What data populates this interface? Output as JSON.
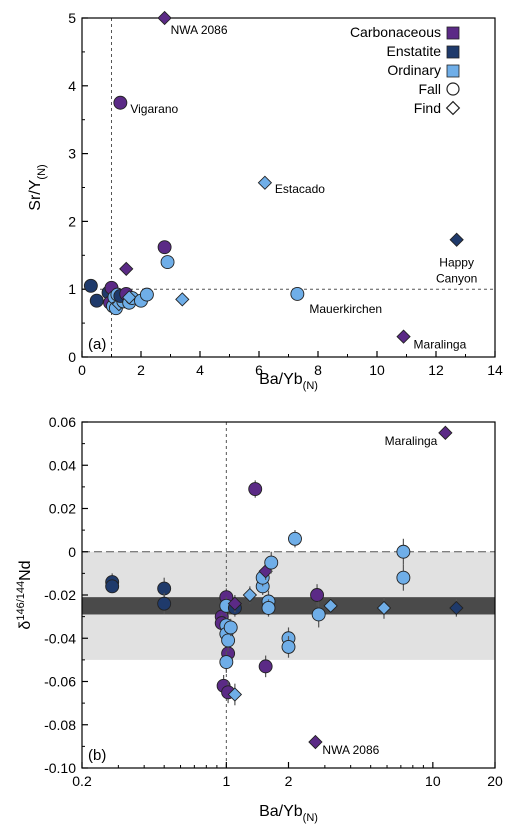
{
  "colors": {
    "carbonaceous": "#5b2a86",
    "enstatite": "#1f3a6b",
    "ordinary": "#6faee8",
    "outline": "#222222",
    "shade_light": "#e1e1e1",
    "shade_dark": "#4a4a4a",
    "errorbar": "#555555"
  },
  "legend": {
    "carbonaceous": "Carbonaceous",
    "enstatite": "Enstatite",
    "ordinary": "Ordinary",
    "fall": "Fall",
    "find": "Find",
    "placement": "top-right"
  },
  "chart_data": [
    {
      "type": "scatter",
      "panel_label": "(a)",
      "xlabel": "Ba/Yb",
      "xlabel_sub": "(N)",
      "ylabel": "Sr/Y",
      "ylabel_sub": "(N)",
      "xlim": [
        0,
        14
      ],
      "ylim": [
        0,
        5
      ],
      "x_scale": "linear",
      "xticks": [
        0,
        2,
        4,
        6,
        8,
        10,
        12,
        14
      ],
      "yticks": [
        0,
        1,
        2,
        3,
        4,
        5
      ],
      "xtick_labels": [
        "0",
        "2",
        "4",
        "6",
        "8",
        "10",
        "12",
        "14"
      ],
      "ytick_labels": [
        "0",
        "1",
        "2",
        "3",
        "4",
        "5"
      ],
      "reference_lines": [
        {
          "axis": "x",
          "value": 1
        },
        {
          "axis": "y",
          "value": 1
        }
      ],
      "points": [
        {
          "x": 2.8,
          "y": 5.0,
          "group": "carbonaceous",
          "shape": "find",
          "label": "NWA 2086"
        },
        {
          "x": 1.3,
          "y": 3.75,
          "group": "carbonaceous",
          "shape": "fall",
          "label": "Vigarano"
        },
        {
          "x": 6.2,
          "y": 2.57,
          "group": "ordinary",
          "shape": "find",
          "label": "Estacado"
        },
        {
          "x": 12.7,
          "y": 1.73,
          "group": "enstatite",
          "shape": "find",
          "label": "Happy Canyon"
        },
        {
          "x": 7.3,
          "y": 0.93,
          "group": "ordinary",
          "shape": "fall",
          "label": "Mauerkirchen"
        },
        {
          "x": 10.9,
          "y": 0.3,
          "group": "carbonaceous",
          "shape": "find",
          "label": "Maralinga"
        },
        {
          "x": 0.3,
          "y": 1.05,
          "group": "enstatite",
          "shape": "fall"
        },
        {
          "x": 0.5,
          "y": 0.83,
          "group": "enstatite",
          "shape": "fall"
        },
        {
          "x": 0.9,
          "y": 0.95,
          "group": "enstatite",
          "shape": "fall"
        },
        {
          "x": 1.0,
          "y": 1.02,
          "group": "carbonaceous",
          "shape": "fall"
        },
        {
          "x": 0.95,
          "y": 0.8,
          "group": "carbonaceous",
          "shape": "fall"
        },
        {
          "x": 1.05,
          "y": 0.75,
          "group": "ordinary",
          "shape": "fall"
        },
        {
          "x": 1.1,
          "y": 0.88,
          "group": "ordinary",
          "shape": "fall"
        },
        {
          "x": 1.15,
          "y": 0.72,
          "group": "ordinary",
          "shape": "fall"
        },
        {
          "x": 1.2,
          "y": 0.92,
          "group": "ordinary",
          "shape": "fall"
        },
        {
          "x": 1.25,
          "y": 0.78,
          "group": "ordinary",
          "shape": "find"
        },
        {
          "x": 1.4,
          "y": 0.82,
          "group": "ordinary",
          "shape": "fall"
        },
        {
          "x": 1.3,
          "y": 0.9,
          "group": "enstatite",
          "shape": "fall"
        },
        {
          "x": 1.5,
          "y": 0.93,
          "group": "carbonaceous",
          "shape": "fall"
        },
        {
          "x": 1.5,
          "y": 1.3,
          "group": "carbonaceous",
          "shape": "find"
        },
        {
          "x": 1.6,
          "y": 0.8,
          "group": "ordinary",
          "shape": "fall"
        },
        {
          "x": 1.7,
          "y": 0.87,
          "group": "ordinary",
          "shape": "fall"
        },
        {
          "x": 1.6,
          "y": 0.88,
          "group": "ordinary",
          "shape": "find"
        },
        {
          "x": 2.0,
          "y": 0.83,
          "group": "ordinary",
          "shape": "fall"
        },
        {
          "x": 2.2,
          "y": 0.92,
          "group": "ordinary",
          "shape": "fall"
        },
        {
          "x": 2.8,
          "y": 1.62,
          "group": "carbonaceous",
          "shape": "fall"
        },
        {
          "x": 2.9,
          "y": 1.4,
          "group": "ordinary",
          "shape": "fall"
        },
        {
          "x": 3.4,
          "y": 0.85,
          "group": "ordinary",
          "shape": "find"
        }
      ]
    },
    {
      "type": "scatter",
      "panel_label": "(b)",
      "xlabel": "Ba/Yb",
      "xlabel_sub": "(N)",
      "ylabel": "δ",
      "ylabel_sup": "146/144",
      "ylabel_tail": "Nd",
      "xlim": [
        0.2,
        20
      ],
      "ylim": [
        -0.1,
        0.06
      ],
      "x_scale": "log",
      "xticks": [
        0.2,
        1,
        2,
        10,
        20
      ],
      "xtick_labels": [
        "0.2",
        "1",
        "2",
        "10",
        "20"
      ],
      "yticks": [
        -0.1,
        -0.08,
        -0.06,
        -0.04,
        -0.02,
        0,
        0.02,
        0.04,
        0.06
      ],
      "ytick_labels": [
        "-0.10",
        "-0.08",
        "-0.06",
        "-0.04",
        "-0.02",
        "0",
        "0.02",
        "0.04",
        "0.06"
      ],
      "reference_lines": [
        {
          "axis": "x",
          "value": 1
        },
        {
          "axis": "y",
          "value": 0
        }
      ],
      "shaded_bands": [
        {
          "ymin": -0.05,
          "ymax": 0.0,
          "tone": "light"
        },
        {
          "ymin": -0.029,
          "ymax": -0.021,
          "tone": "dark"
        }
      ],
      "points": [
        {
          "x": 11.5,
          "y": 0.055,
          "group": "carbonaceous",
          "shape": "find",
          "label": "Maralinga"
        },
        {
          "x": 2.7,
          "y": -0.088,
          "group": "carbonaceous",
          "shape": "find",
          "label": "NWA 2086"
        },
        {
          "x": 0.28,
          "y": -0.014,
          "group": "enstatite",
          "shape": "fall",
          "err": 0.004
        },
        {
          "x": 0.28,
          "y": -0.016,
          "group": "enstatite",
          "shape": "fall",
          "err": 0.003
        },
        {
          "x": 0.5,
          "y": -0.017,
          "group": "enstatite",
          "shape": "fall",
          "err": 0.005
        },
        {
          "x": 0.5,
          "y": -0.024,
          "group": "enstatite",
          "shape": "fall",
          "err": 0.005
        },
        {
          "x": 0.95,
          "y": -0.03,
          "group": "carbonaceous",
          "shape": "fall",
          "err": 0.004
        },
        {
          "x": 0.95,
          "y": -0.033,
          "group": "carbonaceous",
          "shape": "fall",
          "err": 0.004
        },
        {
          "x": 0.97,
          "y": -0.062,
          "group": "carbonaceous",
          "shape": "fall",
          "err": 0.005
        },
        {
          "x": 1.0,
          "y": -0.021,
          "group": "carbonaceous",
          "shape": "fall",
          "err": 0.004
        },
        {
          "x": 1.02,
          "y": -0.047,
          "group": "carbonaceous",
          "shape": "fall",
          "err": 0.005
        },
        {
          "x": 1.02,
          "y": -0.065,
          "group": "carbonaceous",
          "shape": "fall",
          "err": 0.005
        },
        {
          "x": 1.0,
          "y": -0.025,
          "group": "ordinary",
          "shape": "fall",
          "err": 0.004
        },
        {
          "x": 1.0,
          "y": -0.034,
          "group": "ordinary",
          "shape": "fall",
          "err": 0.004
        },
        {
          "x": 1.0,
          "y": -0.038,
          "group": "ordinary",
          "shape": "fall",
          "err": 0.005
        },
        {
          "x": 1.02,
          "y": -0.041,
          "group": "ordinary",
          "shape": "fall",
          "err": 0.005
        },
        {
          "x": 1.0,
          "y": -0.051,
          "group": "ordinary",
          "shape": "fall",
          "err": 0.005
        },
        {
          "x": 1.05,
          "y": -0.035,
          "group": "ordinary",
          "shape": "fall",
          "err": 0.004
        },
        {
          "x": 1.1,
          "y": -0.026,
          "group": "enstatite",
          "shape": "fall",
          "err": 0.004
        },
        {
          "x": 1.1,
          "y": -0.024,
          "group": "carbonaceous",
          "shape": "find",
          "err": 0.004
        },
        {
          "x": 1.1,
          "y": -0.066,
          "group": "ordinary",
          "shape": "find",
          "err": 0.005
        },
        {
          "x": 1.3,
          "y": -0.02,
          "group": "ordinary",
          "shape": "find",
          "err": 0.004
        },
        {
          "x": 1.38,
          "y": 0.029,
          "group": "carbonaceous",
          "shape": "fall",
          "err": 0.004
        },
        {
          "x": 1.5,
          "y": -0.016,
          "group": "ordinary",
          "shape": "fall",
          "err": 0.004
        },
        {
          "x": 1.5,
          "y": -0.012,
          "group": "ordinary",
          "shape": "fall",
          "err": 0.004
        },
        {
          "x": 1.55,
          "y": -0.009,
          "group": "carbonaceous",
          "shape": "find",
          "err": 0.004
        },
        {
          "x": 1.55,
          "y": -0.053,
          "group": "carbonaceous",
          "shape": "fall",
          "err": 0.005
        },
        {
          "x": 1.6,
          "y": -0.023,
          "group": "ordinary",
          "shape": "fall",
          "err": 0.005
        },
        {
          "x": 1.6,
          "y": -0.026,
          "group": "ordinary",
          "shape": "fall",
          "err": 0.004
        },
        {
          "x": 1.65,
          "y": -0.005,
          "group": "ordinary",
          "shape": "fall",
          "err": 0.005
        },
        {
          "x": 2.0,
          "y": -0.04,
          "group": "ordinary",
          "shape": "fall",
          "err": 0.005
        },
        {
          "x": 2.0,
          "y": -0.044,
          "group": "ordinary",
          "shape": "fall",
          "err": 0.005
        },
        {
          "x": 2.15,
          "y": 0.006,
          "group": "ordinary",
          "shape": "fall",
          "err": 0.004
        },
        {
          "x": 2.75,
          "y": -0.02,
          "group": "carbonaceous",
          "shape": "fall",
          "err": 0.005
        },
        {
          "x": 2.8,
          "y": -0.029,
          "group": "ordinary",
          "shape": "fall",
          "err": 0.006
        },
        {
          "x": 3.2,
          "y": -0.025,
          "group": "ordinary",
          "shape": "find",
          "err": 0.004
        },
        {
          "x": 5.8,
          "y": -0.026,
          "group": "ordinary",
          "shape": "find",
          "err": 0.005
        },
        {
          "x": 7.2,
          "y": 0.0,
          "group": "ordinary",
          "shape": "fall",
          "err": 0.006
        },
        {
          "x": 7.2,
          "y": -0.012,
          "group": "ordinary",
          "shape": "fall",
          "err": 0.006
        },
        {
          "x": 13.0,
          "y": -0.026,
          "group": "enstatite",
          "shape": "find",
          "err": 0.004
        }
      ]
    }
  ]
}
